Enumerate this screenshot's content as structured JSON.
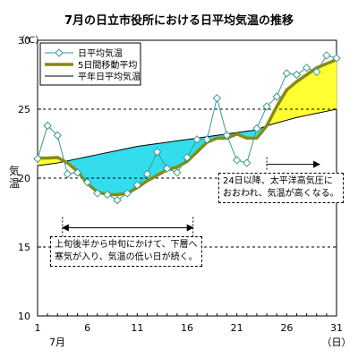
{
  "chart_data": {
    "type": "line",
    "title": "7月の日立市役所における日平均気温の推移",
    "unit_label": "（℃）",
    "ylabel": "気温",
    "xlabel_month": "7月",
    "xlabel_unit": "（日）",
    "xlim": [
      1,
      31
    ],
    "ylim": [
      10,
      30
    ],
    "x_ticks": [
      1,
      6,
      11,
      16,
      21,
      26,
      31
    ],
    "y_ticks": [
      10,
      15,
      20,
      25,
      30
    ],
    "grid": "dashed horizontal at 15, 20, 25",
    "legend_position": "top-left",
    "series": [
      {
        "name": "日平均気温",
        "color": "#3a9a8a",
        "marker": "diamond",
        "values": [
          21.4,
          23.8,
          23.1,
          20.3,
          20.4,
          19.7,
          18.9,
          18.8,
          18.4,
          18.9,
          19.5,
          20.3,
          21.9,
          20.7,
          20.4,
          21.5,
          22.8,
          22.8,
          25.8,
          23.1,
          21.3,
          21.1,
          23.6,
          25.2,
          25.9,
          27.6,
          27.5,
          28.0,
          27.7,
          28.9,
          28.7
        ]
      },
      {
        "name": "5日間移動平均",
        "color": "#8a8a10",
        "values": [
          21.45,
          21.45,
          21.5,
          21.1,
          20.5,
          19.6,
          19.0,
          18.8,
          18.8,
          18.9,
          19.3,
          19.8,
          20.2,
          20.6,
          20.8,
          21.2,
          21.9,
          22.6,
          22.9,
          22.9,
          23.2,
          22.9,
          22.9,
          23.8,
          25.2,
          26.4,
          27.0,
          27.5,
          28.0,
          28.3,
          28.6
        ]
      },
      {
        "name": "平年日平均気温",
        "color": "#000000",
        "values": [
          20.9,
          21.0,
          21.1,
          21.25,
          21.4,
          21.55,
          21.7,
          21.85,
          22.0,
          22.15,
          22.3,
          22.4,
          22.5,
          22.6,
          22.7,
          22.8,
          22.9,
          23.0,
          23.1,
          23.2,
          23.3,
          23.4,
          23.5,
          23.8,
          24.0,
          24.2,
          24.4,
          24.55,
          24.7,
          24.85,
          25.0
        ]
      }
    ],
    "fill_colors": {
      "below_normal": "#33ddee",
      "above_normal": "#ffff33"
    },
    "annotations": [
      {
        "text": "24日以降、太平洋高気圧に\nおおわれ、気温が高くなる。",
        "arrow_from": 24,
        "arrow_to": 29.3,
        "arrow_y": 21.0
      },
      {
        "text": "上旬後半から中旬にかけて、下層へ\n寒気が入り、気温の低い日が続く。",
        "arrow_from": 3.5,
        "arrow_to": 16.6,
        "arrow_y": 16.4
      }
    ]
  }
}
